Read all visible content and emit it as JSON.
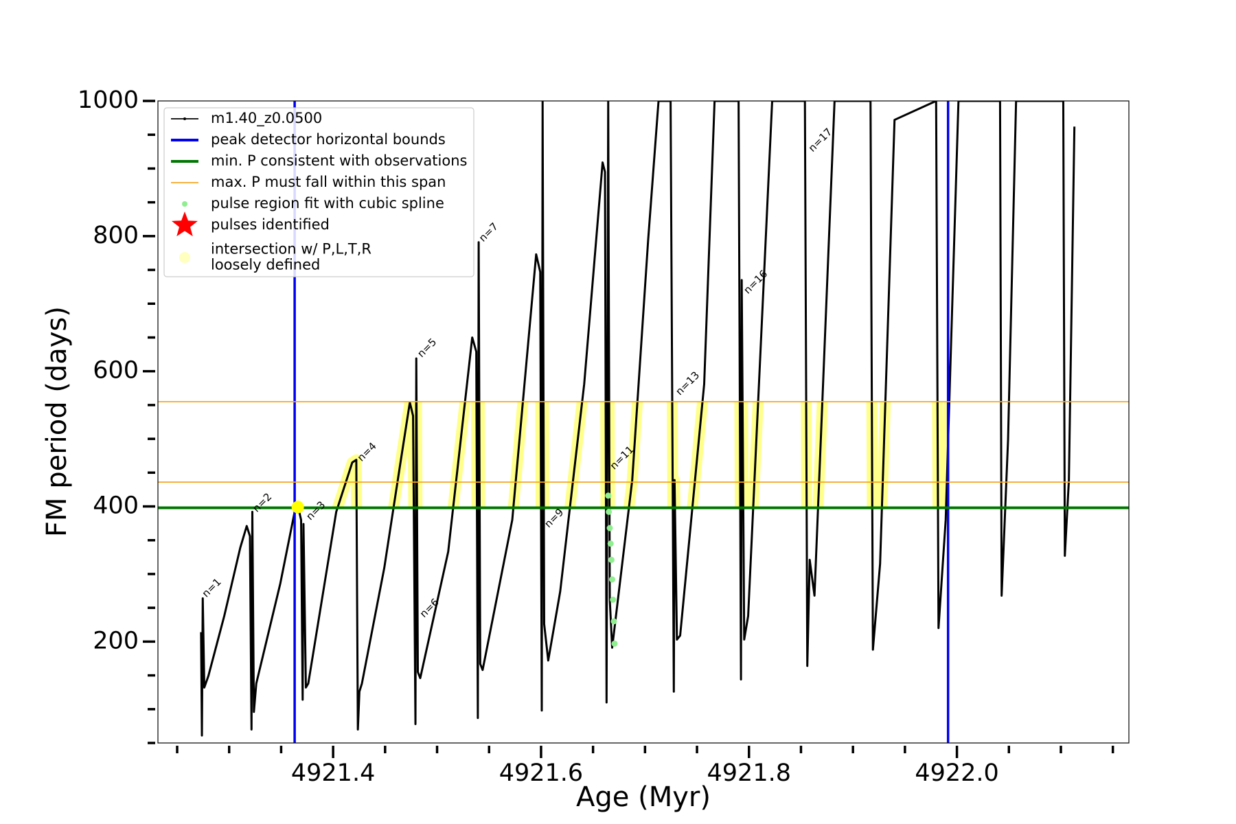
{
  "chart_data": {
    "type": "line",
    "xlabel": "Age (Myr)",
    "ylabel": "FM period (days)",
    "xlim": [
      4921.2315,
      4922.1654
    ],
    "ylim": [
      50,
      1000
    ],
    "xticks": [
      4921.4,
      4921.6,
      4921.8,
      {
        "value": 4922,
        "label": "4922.0"
      }
    ],
    "yticks": [
      200,
      400,
      600,
      800,
      1000
    ],
    "xticks_minor": [
      4921.25,
      4921.3,
      4921.35,
      4921.45,
      4921.5,
      4921.55,
      4921.65,
      4921.7,
      4921.75,
      4921.85,
      4921.9,
      4921.95,
      4922.05,
      4922.1,
      4922.15
    ],
    "yticks_minor": [
      50,
      100,
      150,
      250,
      300,
      350,
      450,
      500,
      550,
      650,
      700,
      750,
      850,
      900,
      950
    ],
    "legend": "upper left",
    "series": [
      {
        "name": "m1.40_z0.0500",
        "type": "line",
        "color": "#000000",
        "x": [
          4921.273,
          4921.2738,
          4921.2746,
          4921.2761,
          4921.28,
          4921.2953,
          4921.3107,
          4921.3169,
          4921.32,
          4921.3215,
          4921.3223,
          4921.3238,
          4921.3261,
          4921.3492,
          4921.363,
          4921.3661,
          4921.3692,
          4921.3707,
          4921.3715,
          4921.3738,
          4921.3761,
          4921.403,
          4921.4184,
          4921.4223,
          4921.4238,
          4921.4253,
          4921.4277,
          4921.4492,
          4921.4646,
          4921.4738,
          4921.4769,
          4921.4792,
          4921.48,
          4921.4815,
          4921.4838,
          4921.5107,
          4921.5338,
          4921.5377,
          4921.5392,
          4921.54,
          4921.5415,
          4921.5438,
          4921.5723,
          4921.5953,
          4921.5992,
          4921.6007,
          4921.6015,
          4921.603,
          4921.6069,
          4921.6184,
          4921.6415,
          4921.6592,
          4921.6615,
          4921.663,
          4921.6646,
          4921.6661,
          4921.6684,
          4921.6877,
          4921.703,
          4921.713,
          4921.7246,
          4921.7277,
          4921.7284,
          4921.7307,
          4921.7338,
          4921.7569,
          4921.7669,
          4921.79,
          4921.7923,
          4921.793,
          4921.7954,
          4921.7992,
          4921.8223,
          4921.8538,
          4921.8561,
          4921.8584,
          4921.863,
          4921.8823,
          4921.9169,
          4921.9192,
          4921.9261,
          4921.94,
          4921.98,
          4921.9823,
          4921.9892,
          4922.0015,
          4922.0415,
          4922.043,
          4922.0492,
          4922.0569,
          4922.1023,
          4922.1038,
          4922.1077,
          4922.113
        ],
        "values": [
          214,
          61,
          264,
          132,
          149,
          238,
          339,
          371,
          356,
          70,
          392,
          96,
          138,
          286,
          392,
          401,
          380,
          114,
          374,
          132,
          138,
          392,
          465,
          469,
          70,
          126,
          138,
          309,
          463,
          554,
          534,
          78,
          619,
          155,
          146,
          333,
          650,
          629,
          87,
          791,
          167,
          158,
          380,
          773,
          747,
          98,
          1000,
          226,
          172,
          274,
          581,
          909,
          895,
          110,
          1000,
          262,
          191,
          439,
          794,
          1000,
          1000,
          126,
          439,
          203,
          209,
          581,
          1000,
          1000,
          144,
          735,
          203,
          238,
          1000,
          1000,
          164,
          321,
          268,
          1000,
          1000,
          188,
          315,
          972,
          1000,
          220,
          380,
          1000,
          1000,
          268,
          499,
          1000,
          1000,
          327,
          439,
          962
        ]
      },
      {
        "name": "peak detector horizontal bounds",
        "type": "vline",
        "color": "#0000ee",
        "x": [
          4921.363,
          4921.9915
        ]
      },
      {
        "name": "min. P consistent with observations",
        "type": "hline",
        "color": "#007700",
        "values": [
          398
        ]
      },
      {
        "name": "max. P must fall within this span",
        "type": "hline",
        "color": "#f5a623",
        "values": [
          436,
          555
        ]
      },
      {
        "name": "pulse region fit with cubic spline",
        "type": "scatter",
        "color": "#90ee90",
        "x": [
          4921.6646,
          4921.6652,
          4921.6661,
          4921.6669,
          4921.6677,
          4921.6684,
          4921.6692,
          4921.67,
          4921.6707
        ],
        "values": [
          416,
          392,
          368,
          345,
          321,
          292,
          262,
          230,
          197
        ]
      },
      {
        "name": "pulses identified",
        "type": "star",
        "color": "#ff0000",
        "x": [],
        "values": []
      },
      {
        "name": "intersection w/ P,L,T,R\nloosely defined",
        "type": "scatter",
        "color": "#ffff00",
        "x": [
          4921.366
        ],
        "values": [
          399
        ]
      }
    ],
    "annotations": [
      {
        "text": "n=1",
        "x": 4921.276,
        "y": 268
      },
      {
        "text": "n=2",
        "x": 4921.3246,
        "y": 394
      },
      {
        "text": "n=3",
        "x": 4921.3761,
        "y": 382
      },
      {
        "text": "n=4",
        "x": 4921.4253,
        "y": 469
      },
      {
        "text": "n=5",
        "x": 4921.4831,
        "y": 623
      },
      {
        "text": "n=6",
        "x": 4921.4854,
        "y": 238
      },
      {
        "text": "n=7",
        "x": 4921.5423,
        "y": 794
      },
      {
        "text": "n=9",
        "x": 4921.6053,
        "y": 371
      },
      {
        "text": "n=11",
        "x": 4921.6684,
        "y": 457
      },
      {
        "text": "n=13",
        "x": 4921.7315,
        "y": 567
      },
      {
        "text": "n=16",
        "x": 4921.7969,
        "y": 717
      },
      {
        "text": "n=17",
        "x": 4921.8592,
        "y": 927
      }
    ]
  }
}
